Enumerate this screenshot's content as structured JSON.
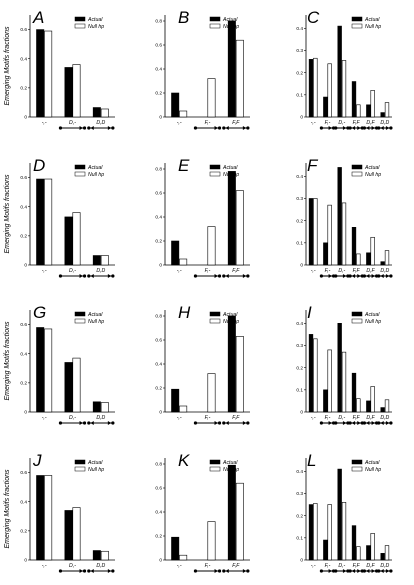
{
  "figure": {
    "ylabel": "Emerging Motifs fractions",
    "legend": {
      "actual": "Actual",
      "null": "Null hp"
    },
    "colors": {
      "actual": "#000000",
      "null": "#ffffff",
      "stroke": "#000000"
    }
  },
  "chart_data": [
    {
      "panel": "A",
      "type": "bar",
      "categories": [
        "-,-",
        "D,-",
        "D,D"
      ],
      "ylim": [
        0,
        0.7
      ],
      "yticks": [
        0,
        0.2,
        0.4,
        0.6
      ],
      "series": [
        {
          "name": "Actual",
          "values": [
            0.6,
            0.34,
            0.065
          ]
        },
        {
          "name": "Null hp",
          "values": [
            0.59,
            0.36,
            0.055
          ]
        }
      ],
      "legend": "top-right"
    },
    {
      "panel": "B",
      "type": "bar",
      "categories": [
        "-,-",
        "F,-",
        "F,F"
      ],
      "ylim": [
        0,
        0.85
      ],
      "yticks": [
        0,
        0.2,
        0.4,
        0.6,
        0.8
      ],
      "series": [
        {
          "name": "Actual",
          "values": [
            0.2,
            0.0,
            0.8
          ]
        },
        {
          "name": "Null hp",
          "values": [
            0.05,
            0.32,
            0.64
          ]
        }
      ],
      "legend": "top-right"
    },
    {
      "panel": "C",
      "type": "bar",
      "categories": [
        "-,-",
        "F,-",
        "D,-",
        "F,F",
        "D,F",
        "D,D"
      ],
      "ylim": [
        0,
        0.46
      ],
      "yticks": [
        0,
        0.1,
        0.2,
        0.3,
        0.4
      ],
      "series": [
        {
          "name": "Actual",
          "values": [
            0.26,
            0.09,
            0.41,
            0.16,
            0.055,
            0.02
          ]
        },
        {
          "name": "Null hp",
          "values": [
            0.265,
            0.24,
            0.255,
            0.055,
            0.12,
            0.065
          ]
        }
      ],
      "legend": "top-right"
    },
    {
      "panel": "D",
      "type": "bar",
      "categories": [
        "-,-",
        "D,-",
        "D,D"
      ],
      "ylim": [
        0,
        0.7
      ],
      "yticks": [
        0,
        0.2,
        0.4,
        0.6
      ],
      "series": [
        {
          "name": "Actual",
          "values": [
            0.59,
            0.33,
            0.065
          ]
        },
        {
          "name": "Null hp",
          "values": [
            0.59,
            0.36,
            0.065
          ]
        }
      ],
      "legend": "top-right"
    },
    {
      "panel": "E",
      "type": "bar",
      "categories": [
        "-,-",
        "F,-",
        "F,F"
      ],
      "ylim": [
        0,
        0.85
      ],
      "yticks": [
        0,
        0.2,
        0.4,
        0.6,
        0.8
      ],
      "series": [
        {
          "name": "Actual",
          "values": [
            0.2,
            0.0,
            0.78
          ]
        },
        {
          "name": "Null hp",
          "values": [
            0.05,
            0.32,
            0.62
          ]
        }
      ],
      "legend": "top-right"
    },
    {
      "panel": "F",
      "type": "bar",
      "categories": [
        "-,-",
        "F,-",
        "D,-",
        "F,F",
        "D,F",
        "D,D"
      ],
      "ylim": [
        0,
        0.46
      ],
      "yticks": [
        0,
        0.1,
        0.2,
        0.3,
        0.4
      ],
      "series": [
        {
          "name": "Actual",
          "values": [
            0.3,
            0.1,
            0.44,
            0.17,
            0.055,
            0.015
          ]
        },
        {
          "name": "Null hp",
          "values": [
            0.3,
            0.27,
            0.28,
            0.05,
            0.125,
            0.065
          ]
        }
      ],
      "legend": "top-right"
    },
    {
      "panel": "G",
      "type": "bar",
      "categories": [
        "-,-",
        "D,-",
        "D,D"
      ],
      "ylim": [
        0,
        0.7
      ],
      "yticks": [
        0,
        0.2,
        0.4,
        0.6
      ],
      "series": [
        {
          "name": "Actual",
          "values": [
            0.58,
            0.34,
            0.07
          ]
        },
        {
          "name": "Null hp",
          "values": [
            0.57,
            0.37,
            0.065
          ]
        }
      ],
      "legend": "top-right"
    },
    {
      "panel": "H",
      "type": "bar",
      "categories": [
        "-,-",
        "F,-",
        "F,F"
      ],
      "ylim": [
        0,
        0.85
      ],
      "yticks": [
        0,
        0.2,
        0.4,
        0.6,
        0.8
      ],
      "series": [
        {
          "name": "Actual",
          "values": [
            0.19,
            0.0,
            0.8
          ]
        },
        {
          "name": "Null hp",
          "values": [
            0.05,
            0.32,
            0.63
          ]
        }
      ],
      "legend": "top-right"
    },
    {
      "panel": "I",
      "type": "bar",
      "categories": [
        "-,-",
        "F,-",
        "D,-",
        "F,F",
        "D,F",
        "D,D"
      ],
      "ylim": [
        0,
        0.46
      ],
      "yticks": [
        0,
        0.1,
        0.2,
        0.3,
        0.4
      ],
      "series": [
        {
          "name": "Actual",
          "values": [
            0.35,
            0.1,
            0.4,
            0.175,
            0.05,
            0.02
          ]
        },
        {
          "name": "Null hp",
          "values": [
            0.33,
            0.28,
            0.27,
            0.06,
            0.115,
            0.055
          ]
        }
      ],
      "legend": "top-right"
    },
    {
      "panel": "J",
      "type": "bar",
      "categories": [
        "-,-",
        "D,-",
        "D,D"
      ],
      "ylim": [
        0,
        0.7
      ],
      "yticks": [
        0,
        0.2,
        0.4,
        0.6
      ],
      "series": [
        {
          "name": "Actual",
          "values": [
            0.58,
            0.34,
            0.065
          ]
        },
        {
          "name": "Null hp",
          "values": [
            0.58,
            0.36,
            0.06
          ]
        }
      ],
      "legend": "top-right"
    },
    {
      "panel": "K",
      "type": "bar",
      "categories": [
        "-,-",
        "F,-",
        "F,F"
      ],
      "ylim": [
        0,
        0.85
      ],
      "yticks": [
        0,
        0.2,
        0.4,
        0.6,
        0.8
      ],
      "series": [
        {
          "name": "Actual",
          "values": [
            0.19,
            0.0,
            0.79
          ]
        },
        {
          "name": "Null hp",
          "values": [
            0.04,
            0.32,
            0.64
          ]
        }
      ],
      "legend": "top-right"
    },
    {
      "panel": "L",
      "type": "bar",
      "categories": [
        "-,-",
        "F,-",
        "D,-",
        "F,F",
        "D,F",
        "D,D"
      ],
      "ylim": [
        0,
        0.46
      ],
      "yticks": [
        0,
        0.1,
        0.2,
        0.3,
        0.4
      ],
      "series": [
        {
          "name": "Actual",
          "values": [
            0.25,
            0.09,
            0.41,
            0.155,
            0.065,
            0.03
          ]
        },
        {
          "name": "Null hp",
          "values": [
            0.255,
            0.25,
            0.26,
            0.06,
            0.12,
            0.065
          ]
        }
      ],
      "legend": "top-right"
    }
  ]
}
